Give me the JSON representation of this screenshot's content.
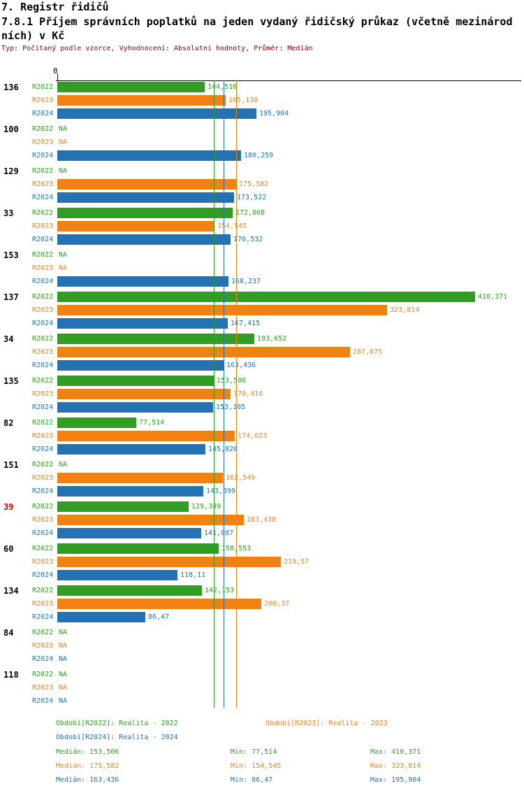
{
  "header": {
    "title_line1": "7. Registr řidičů",
    "title_line2": "7.8.1 Příjem správních poplatků na jeden vydaný řidičský průkaz (včetně mezinárodních) v Kč",
    "subtitle": "Typ: Počítaný podle vzorce, Vyhodnocení: Absolutní hodnoty, Průměr: Medián"
  },
  "colors": {
    "series_green": "#2f9e23",
    "series_orange": "#f08214",
    "series_blue": "#2272b4",
    "highlight_id": "#d40000",
    "subtitle": "#8b0000",
    "axis": "#000000"
  },
  "chart_data": {
    "type": "bar",
    "orientation": "horizontal",
    "title": "7.8.1 Příjem správních poplatků na jeden vydaný řidičský průkaz (včetně mezinárodních) v Kč",
    "value_unit": "Kč",
    "na_label": "NA",
    "x_axis": {
      "origin_label": "0",
      "gridlines": false
    },
    "series": [
      {
        "name": "R2022",
        "legend": "Období[R2022]: Realita - 2022",
        "color": "#2f9e23",
        "median": 153.506,
        "stats": {
          "median": "Medián: 153,506",
          "min": "Min: 77,514",
          "max": "Max: 410,371"
        }
      },
      {
        "name": "R2023",
        "legend": "Období[R2023]: Realita - 2023",
        "color": "#f08214",
        "median": 175.582,
        "stats": {
          "median": "Medián: 175,582",
          "min": "Min: 154,545",
          "max": "Max: 323,814"
        }
      },
      {
        "name": "R2024",
        "legend": "Období[R2024]: Realita - 2024",
        "color": "#2272b4",
        "median": 163.436,
        "stats": {
          "median": "Medián: 163,436",
          "min": "Min: 86,47",
          "max": "Max: 195,904"
        }
      }
    ],
    "groups": [
      {
        "id": "136",
        "highlight": false,
        "values": [
          144.516,
          165.138,
          195.904
        ],
        "displays": [
          "144,516",
          "165,138",
          "195,904"
        ]
      },
      {
        "id": "100",
        "highlight": false,
        "values": [
          null,
          null,
          180.259
        ],
        "displays": [
          "NA",
          "NA",
          "180,259"
        ]
      },
      {
        "id": "129",
        "highlight": false,
        "values": [
          null,
          175.582,
          173.522
        ],
        "displays": [
          "NA",
          "175,582",
          "173,522"
        ]
      },
      {
        "id": "33",
        "highlight": false,
        "values": [
          172.068,
          154.545,
          170.532
        ],
        "displays": [
          "172,068",
          "154,545",
          "170,532"
        ]
      },
      {
        "id": "153",
        "highlight": false,
        "values": [
          null,
          null,
          168.237
        ],
        "displays": [
          "NA",
          "NA",
          "168,237"
        ]
      },
      {
        "id": "137",
        "highlight": false,
        "values": [
          410.371,
          323.814,
          167.415
        ],
        "displays": [
          "410,371",
          "323,814",
          "167,415"
        ]
      },
      {
        "id": "34",
        "highlight": false,
        "values": [
          193.652,
          287.875,
          163.436
        ],
        "displays": [
          "193,652",
          "287,875",
          "163,436"
        ]
      },
      {
        "id": "135",
        "highlight": false,
        "values": [
          153.506,
          170.416,
          153.105
        ],
        "displays": [
          "153,506",
          "170,416",
          "153,105"
        ]
      },
      {
        "id": "82",
        "highlight": false,
        "values": [
          77.514,
          174.623,
          145.828
        ],
        "displays": [
          "77,514",
          "174,623",
          "145,828"
        ]
      },
      {
        "id": "151",
        "highlight": false,
        "values": [
          null,
          162.549,
          143.399
        ],
        "displays": [
          "NA",
          "162,549",
          "143,399"
        ]
      },
      {
        "id": "39",
        "highlight": true,
        "values": [
          129.349,
          183.438,
          141.087
        ],
        "displays": [
          "129,349",
          "183,438",
          "141,087"
        ]
      },
      {
        "id": "60",
        "highlight": false,
        "values": [
          158.553,
          219.57,
          118.11
        ],
        "displays": [
          "158,553",
          "219,57",
          "118,11"
        ]
      },
      {
        "id": "134",
        "highlight": false,
        "values": [
          142.153,
          200.37,
          86.47
        ],
        "displays": [
          "142,153",
          "200,37",
          "86,47"
        ]
      },
      {
        "id": "84",
        "highlight": false,
        "values": [
          null,
          null,
          null
        ],
        "displays": [
          "NA",
          "NA",
          "NA"
        ]
      },
      {
        "id": "118",
        "highlight": false,
        "values": [
          null,
          null,
          null
        ],
        "displays": [
          "NA",
          "NA",
          "NA"
        ]
      }
    ]
  }
}
